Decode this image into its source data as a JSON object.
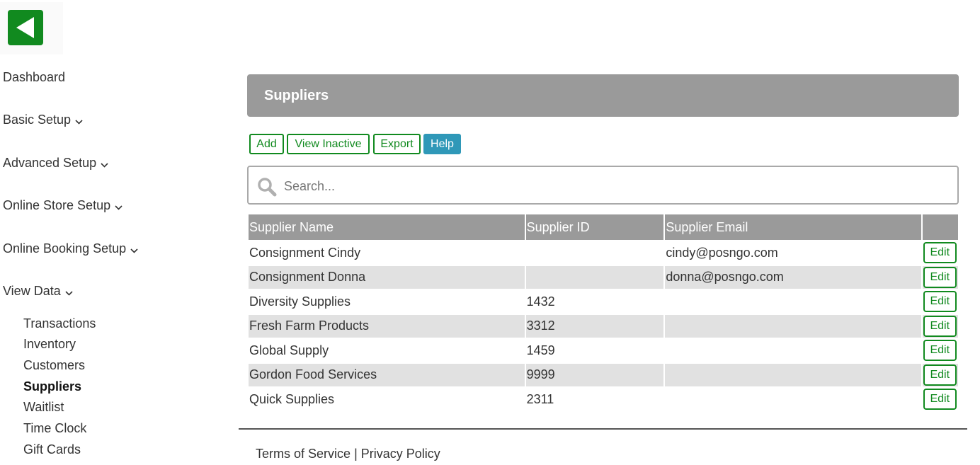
{
  "colors": {
    "accent_green": "#118a1f",
    "help_blue": "#2f98b8",
    "header_gray": "#9a9a9a",
    "row_alt": "#e1e1e1"
  },
  "back_button": {
    "icon": "back-arrow-icon"
  },
  "sidebar": {
    "items": [
      {
        "label": "Dashboard"
      },
      {
        "label": "Basic Setup",
        "icon": "chevron-down-icon"
      },
      {
        "label": "Advanced Setup",
        "icon": "chevron-down-icon"
      },
      {
        "label": "Online Store Setup",
        "icon": "chevron-down-icon"
      },
      {
        "label": "Online Booking Setup",
        "icon": "chevron-down-icon"
      },
      {
        "label": "View Data",
        "icon": "chevron-down-icon"
      }
    ],
    "view_data_items": [
      {
        "label": "Transactions"
      },
      {
        "label": "Inventory"
      },
      {
        "label": "Customers"
      },
      {
        "label": "Suppliers",
        "active": true
      },
      {
        "label": "Waitlist"
      },
      {
        "label": "Time Clock"
      },
      {
        "label": "Gift Cards"
      }
    ]
  },
  "main": {
    "title": "Suppliers",
    "toolbar": {
      "add": "Add",
      "view_inactive": "View Inactive",
      "export": "Export",
      "help": "Help"
    },
    "search": {
      "placeholder": "Search...",
      "value": "",
      "icon": "search-icon"
    },
    "table": {
      "columns": [
        "Supplier Name",
        "Supplier ID",
        "Supplier Email",
        ""
      ],
      "edit_label": "Edit",
      "rows": [
        {
          "name": "Consignment Cindy",
          "id": "",
          "email": "cindy@posngo.com"
        },
        {
          "name": "Consignment Donna",
          "id": "",
          "email": "donna@posngo.com"
        },
        {
          "name": "Diversity Supplies",
          "id": "1432",
          "email": ""
        },
        {
          "name": "Fresh Farm Products",
          "id": "3312",
          "email": ""
        },
        {
          "name": "Global Supply",
          "id": "1459",
          "email": ""
        },
        {
          "name": "Gordon Food Services",
          "id": "9999",
          "email": ""
        },
        {
          "name": "Quick Supplies",
          "id": "2311",
          "email": ""
        }
      ]
    }
  },
  "footer": {
    "terms": "Terms of Service",
    "separator": "|",
    "privacy": "Privacy Policy"
  }
}
